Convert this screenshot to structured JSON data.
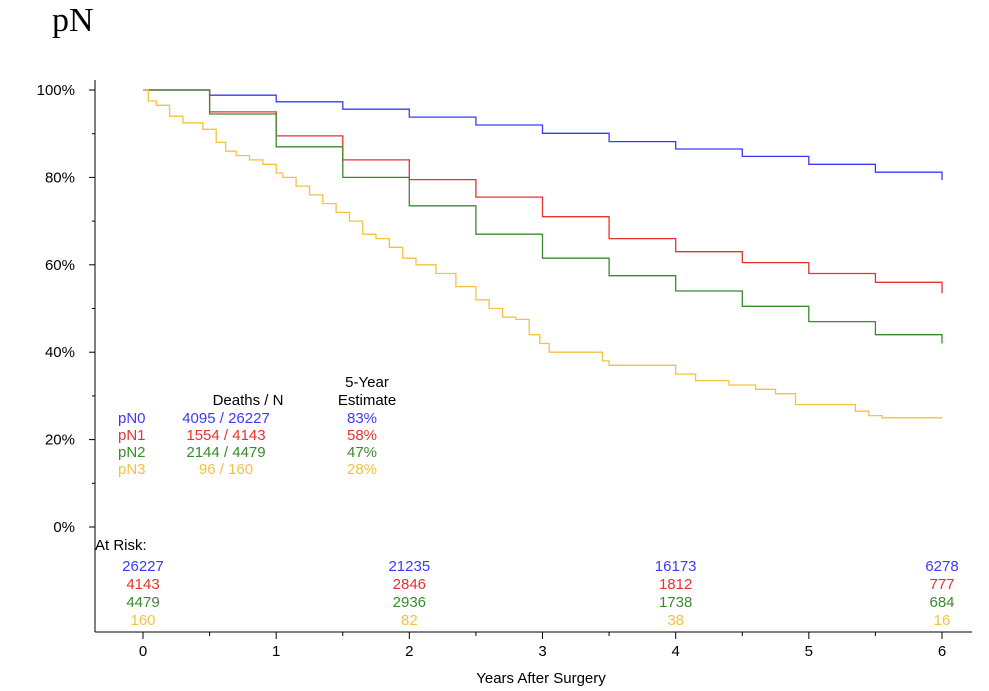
{
  "title": "pN",
  "chart_data": {
    "type": "line",
    "xlabel": "Years After Surgery",
    "ylabel": "",
    "xlim": [
      0,
      6
    ],
    "ylim": [
      0,
      100
    ],
    "x_ticks": [
      "0",
      "1",
      "2",
      "3",
      "4",
      "5",
      "6"
    ],
    "y_ticks": [
      "0%",
      "20%",
      "40%",
      "60%",
      "80%",
      "100%"
    ],
    "grid": false,
    "legend": {
      "position": "bottom-left",
      "col_header_1": "Deaths / N",
      "col_header_2_line1": "5-Year",
      "col_header_2_line2": "Estimate"
    },
    "series": [
      {
        "name": "pN0",
        "color": "#3a3aff",
        "deaths_n": "4095 / 26227",
        "estimate": "83%",
        "x": [
          0,
          0.5,
          1,
          1.5,
          2,
          2.5,
          3,
          3.5,
          4,
          4.5,
          5,
          5.5,
          6
        ],
        "y": [
          100,
          98.8,
          97.3,
          95.6,
          93.8,
          92.0,
          90.1,
          88.2,
          86.5,
          84.8,
          83.0,
          81.2,
          79.4
        ]
      },
      {
        "name": "pN1",
        "color": "#e8322e",
        "deaths_n": "1554 / 4143",
        "estimate": "58%",
        "x": [
          0,
          0.5,
          1,
          1.5,
          2,
          2.5,
          3,
          3.5,
          4,
          4.5,
          5,
          5.5,
          6
        ],
        "y": [
          100,
          95.0,
          89.5,
          84.0,
          79.5,
          75.5,
          71.0,
          66.0,
          63.0,
          60.5,
          58.0,
          56.0,
          53.5
        ]
      },
      {
        "name": "pN2",
        "color": "#3a8a2e",
        "deaths_n": "2144 / 4479",
        "estimate": "47%",
        "x": [
          0,
          0.5,
          1,
          1.5,
          2,
          2.5,
          3,
          3.5,
          4,
          4.5,
          5,
          5.5,
          6
        ],
        "y": [
          100,
          94.5,
          87.0,
          80.0,
          73.5,
          67.0,
          61.5,
          57.5,
          54.0,
          50.5,
          47.0,
          44.0,
          42.0
        ]
      },
      {
        "name": "pN3",
        "color": "#f2c240",
        "deaths_n": "96 / 160",
        "estimate": "28%",
        "x": [
          0,
          0.04,
          0.1,
          0.2,
          0.3,
          0.45,
          0.55,
          0.62,
          0.7,
          0.8,
          0.9,
          1.0,
          1.05,
          1.15,
          1.25,
          1.35,
          1.45,
          1.55,
          1.65,
          1.75,
          1.85,
          1.95,
          2.05,
          2.2,
          2.35,
          2.5,
          2.6,
          2.7,
          2.8,
          2.9,
          2.98,
          3.05,
          3.25,
          3.45,
          3.5,
          3.9,
          4.0,
          4.15,
          4.4,
          4.6,
          4.75,
          4.9,
          5.3,
          5.35,
          5.45,
          5.55,
          6.0
        ],
        "y": [
          100,
          97.5,
          96.5,
          94,
          92.5,
          91,
          88,
          86,
          85,
          84,
          83,
          81,
          80,
          78,
          76,
          74,
          72,
          70,
          67,
          66,
          64,
          61.5,
          60,
          58,
          55,
          52,
          50,
          48,
          47.5,
          44,
          42,
          40,
          40,
          38,
          37,
          37,
          35,
          33.5,
          32.5,
          31.5,
          30.5,
          28,
          28,
          26.5,
          25.5,
          25,
          25
        ]
      }
    ],
    "at_risk": {
      "label": "At Risk:",
      "x": [
        0,
        2,
        4,
        6
      ],
      "rows": [
        {
          "name": "pN0",
          "values": [
            "26227",
            "21235",
            "16173",
            "6278"
          ]
        },
        {
          "name": "pN1",
          "values": [
            "4143",
            "2846",
            "1812",
            "777"
          ]
        },
        {
          "name": "pN2",
          "values": [
            "4479",
            "2936",
            "1738",
            "684"
          ]
        },
        {
          "name": "pN3",
          "values": [
            "160",
            "82",
            "38",
            "16"
          ]
        }
      ]
    }
  }
}
